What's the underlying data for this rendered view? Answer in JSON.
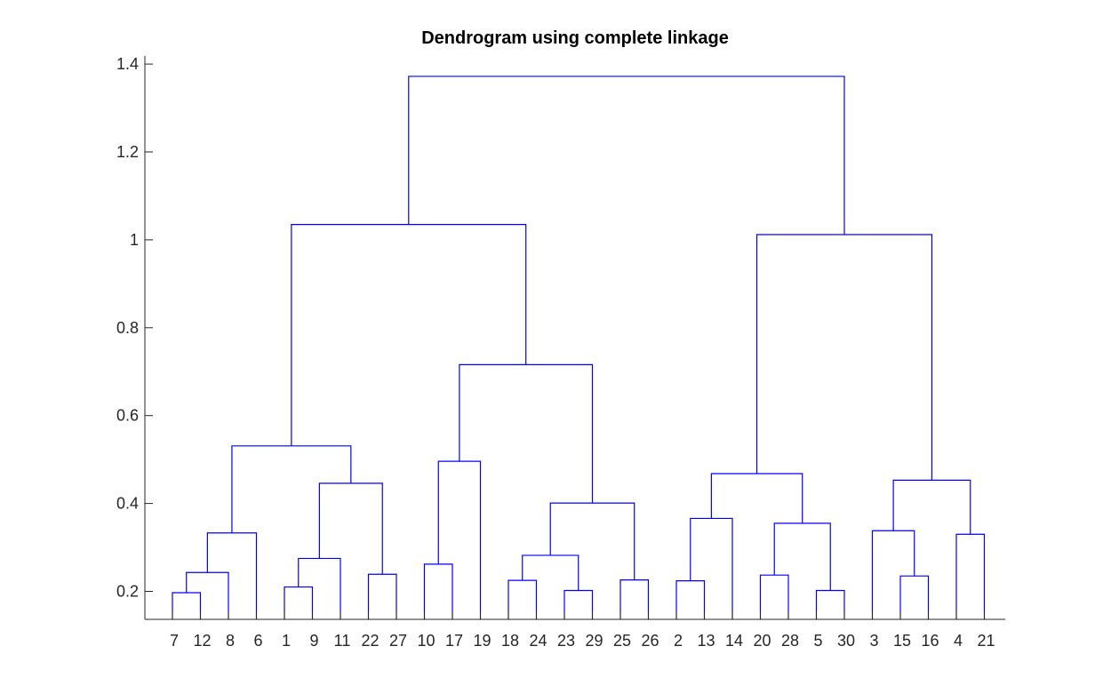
{
  "chart_data": {
    "type": "dendrogram",
    "title": "Dendrogram using complete linkage",
    "xlabel": "",
    "ylabel": "",
    "ylim": [
      0.136,
      1.4
    ],
    "yticks": [
      0.2,
      0.4,
      0.6,
      0.8,
      1,
      1.2,
      1.4
    ],
    "ytick_labels": [
      "0.2",
      "0.4",
      "0.6",
      "0.8",
      "1",
      "1.2",
      "1.4"
    ],
    "leaf_order": [
      "7",
      "12",
      "8",
      "6",
      "1",
      "9",
      "11",
      "22",
      "27",
      "10",
      "17",
      "19",
      "18",
      "24",
      "23",
      "29",
      "25",
      "26",
      "2",
      "13",
      "14",
      "20",
      "28",
      "5",
      "30",
      "3",
      "15",
      "16",
      "4",
      "21"
    ],
    "line_color": "#0000ff",
    "merges": [
      {
        "left": "7",
        "right": "12",
        "height": 0.197
      },
      {
        "left": "7-12",
        "right": "8",
        "height": 0.243
      },
      {
        "left": "7-12-8",
        "right": "6",
        "height": 0.333
      },
      {
        "left": "1",
        "right": "9",
        "height": 0.21
      },
      {
        "left": "1-9",
        "right": "11",
        "height": 0.275
      },
      {
        "left": "22",
        "right": "27",
        "height": 0.239
      },
      {
        "left": "1-9-11",
        "right": "22-27",
        "height": 0.446
      },
      {
        "left": "7-12-8-6",
        "right": "1-9-11-22-27",
        "height": 0.531
      },
      {
        "left": "10",
        "right": "17",
        "height": 0.262
      },
      {
        "left": "10-17",
        "right": "19",
        "height": 0.496
      },
      {
        "left": "18",
        "right": "24",
        "height": 0.225
      },
      {
        "left": "23",
        "right": "29",
        "height": 0.202
      },
      {
        "left": "18-24",
        "right": "23-29",
        "height": 0.282
      },
      {
        "left": "25",
        "right": "26",
        "height": 0.226
      },
      {
        "left": "18-24-23-29",
        "right": "25-26",
        "height": 0.401
      },
      {
        "left": "10-17-19",
        "right": "18-24-23-29-25-26",
        "height": 0.716
      },
      {
        "left": "7-...-27",
        "right": "10-...-26",
        "height": 1.035
      },
      {
        "left": "2",
        "right": "13",
        "height": 0.224
      },
      {
        "left": "2-13",
        "right": "14",
        "height": 0.366
      },
      {
        "left": "20",
        "right": "28",
        "height": 0.237
      },
      {
        "left": "5",
        "right": "30",
        "height": 0.202
      },
      {
        "left": "20-28",
        "right": "5-30",
        "height": 0.355
      },
      {
        "left": "2-13-14",
        "right": "20-28-5-30",
        "height": 0.468
      },
      {
        "left": "15",
        "right": "16",
        "height": 0.235
      },
      {
        "left": "3",
        "right": "15-16",
        "height": 0.338
      },
      {
        "left": "4",
        "right": "21",
        "height": 0.33
      },
      {
        "left": "3-15-16",
        "right": "4-21",
        "height": 0.453
      },
      {
        "left": "2-...-30",
        "right": "3-...-21",
        "height": 1.012
      },
      {
        "left": "7-...-26",
        "right": "2-...-21",
        "height": 1.372
      }
    ]
  }
}
